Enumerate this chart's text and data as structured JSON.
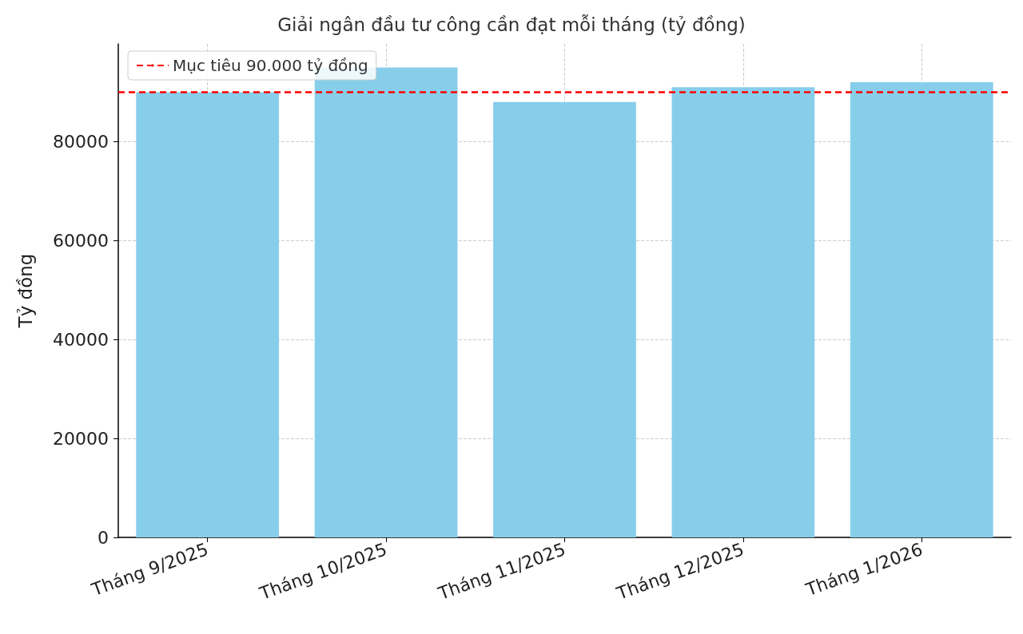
{
  "chart_data": {
    "type": "bar",
    "title": "Giải ngân đầu tư công cần đạt mỗi tháng (tỷ đồng)",
    "ylabel": "Tỷ đồng",
    "categories": [
      "Tháng 9/2025",
      "Tháng 10/2025",
      "Tháng 11/2025",
      "Tháng 12/2025",
      "Tháng 1/2026"
    ],
    "values": [
      90000,
      95000,
      88000,
      91000,
      92000
    ],
    "color": "#87ceeb",
    "ylim": [
      0,
      99750
    ],
    "yticks": [
      0,
      20000,
      40000,
      60000,
      80000
    ],
    "grid": true,
    "legend": "top left",
    "ref_lines": [
      {
        "axis": "y",
        "value": 90000,
        "label": "Mục tiêu 90.000 tỷ đồng",
        "color": "#ff0000",
        "line_style": "dashed"
      }
    ]
  }
}
